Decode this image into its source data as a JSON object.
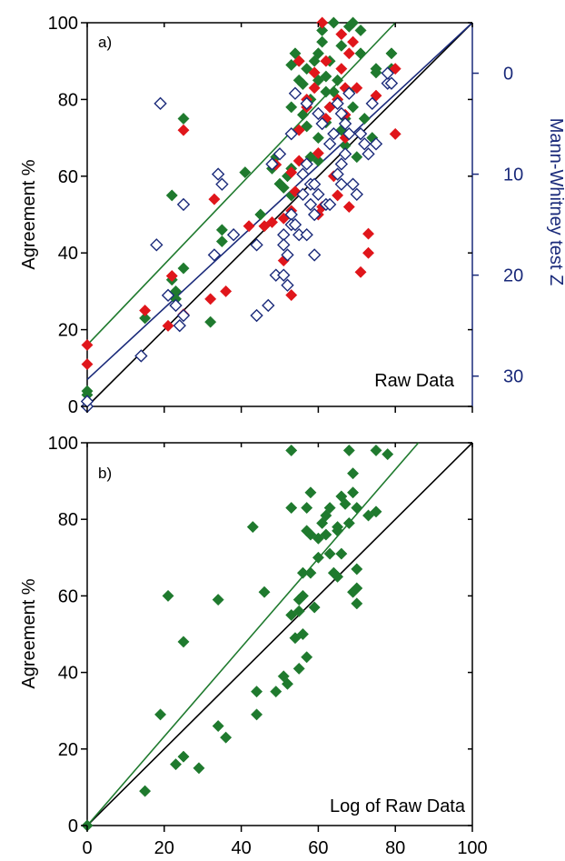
{
  "colors": {
    "black": "#000000",
    "green": "#1f7a2e",
    "red": "#e0161b",
    "navy": "#1a2a7a"
  },
  "chart_data": [
    {
      "type": "scatter",
      "panel_label": "a)",
      "annotation": "Raw Data",
      "ylabel": "Agreement %",
      "y2label": "Mann-Whitney test Z",
      "xlim": [
        0,
        100
      ],
      "ylim": [
        0,
        100
      ],
      "y2lim": [
        -5,
        33
      ],
      "y2_inverted": true,
      "xticks": [
        "0",
        "20",
        "40",
        "60",
        "80",
        "100"
      ],
      "xtick_labels_shown": false,
      "yticks": [
        {
          "value": 0,
          "label": "0"
        },
        {
          "value": 20,
          "label": "20"
        },
        {
          "value": 40,
          "label": "40"
        },
        {
          "value": 60,
          "label": "60"
        },
        {
          "value": 80,
          "label": "80"
        },
        {
          "value": 100,
          "label": "100"
        }
      ],
      "y2ticks": [
        {
          "value": 0,
          "label": "0"
        },
        {
          "value": 10,
          "label": "10"
        },
        {
          "value": 20,
          "label": "20"
        },
        {
          "value": 30,
          "label": "30"
        }
      ],
      "lines": [
        {
          "color": "black",
          "points": [
            [
              0,
              0
            ],
            [
              100,
              100
            ]
          ]
        },
        {
          "color": "green",
          "points": [
            [
              0,
              16
            ],
            [
              80,
              100
            ]
          ]
        },
        {
          "color": "navy",
          "points": [
            [
              0,
              7
            ],
            [
              100,
              100
            ]
          ]
        }
      ],
      "series": [
        {
          "color": "green",
          "marker": "diamond-filled",
          "points": [
            [
              0,
              3
            ],
            [
              0,
              4
            ],
            [
              15,
              23
            ],
            [
              22,
              55
            ],
            [
              22,
              33
            ],
            [
              23,
              30
            ],
            [
              23,
              28
            ],
            [
              25,
              75
            ],
            [
              25,
              36
            ],
            [
              32,
              22
            ],
            [
              35,
              43
            ],
            [
              35,
              46
            ],
            [
              41,
              61
            ],
            [
              45,
              50
            ],
            [
              46,
              47
            ],
            [
              48,
              62
            ],
            [
              49,
              65
            ],
            [
              50,
              58
            ],
            [
              51,
              57
            ],
            [
              52,
              60
            ],
            [
              53,
              55
            ],
            [
              53,
              62
            ],
            [
              53,
              78
            ],
            [
              53,
              89
            ],
            [
              54,
              92
            ],
            [
              55,
              85
            ],
            [
              55,
              90
            ],
            [
              56,
              84
            ],
            [
              56,
              76
            ],
            [
              57,
              73
            ],
            [
              57,
              88
            ],
            [
              58,
              65
            ],
            [
              58,
              80
            ],
            [
              59,
              90
            ],
            [
              60,
              92
            ],
            [
              60,
              85
            ],
            [
              60,
              70
            ],
            [
              60,
              64
            ],
            [
              61,
              98
            ],
            [
              61,
              95
            ],
            [
              62,
              86
            ],
            [
              62,
              82
            ],
            [
              62,
              74
            ],
            [
              63,
              90
            ],
            [
              63,
              78
            ],
            [
              64,
              100
            ],
            [
              64,
              82
            ],
            [
              65,
              85
            ],
            [
              65,
              80
            ],
            [
              66,
              94
            ],
            [
              66,
              72
            ],
            [
              67,
              75
            ],
            [
              67,
              68
            ],
            [
              68,
              99
            ],
            [
              68,
              82
            ],
            [
              69,
              100
            ],
            [
              69,
              78
            ],
            [
              70,
              65
            ],
            [
              71,
              98
            ],
            [
              71,
              92
            ],
            [
              72,
              75
            ],
            [
              74,
              70
            ],
            [
              75,
              88
            ],
            [
              75,
              87
            ],
            [
              79,
              92
            ],
            [
              79,
              88
            ]
          ]
        },
        {
          "color": "red",
          "marker": "diamond-filled",
          "points": [
            [
              0,
              16
            ],
            [
              0,
              11
            ],
            [
              15,
              25
            ],
            [
              21,
              21
            ],
            [
              22,
              34
            ],
            [
              25,
              72
            ],
            [
              25,
              24
            ],
            [
              32,
              28
            ],
            [
              33,
              54
            ],
            [
              36,
              30
            ],
            [
              42,
              47
            ],
            [
              46,
              47
            ],
            [
              48,
              48
            ],
            [
              49,
              63
            ],
            [
              51,
              49
            ],
            [
              51,
              38
            ],
            [
              53,
              51
            ],
            [
              53,
              29
            ],
            [
              53,
              61
            ],
            [
              54,
              56
            ],
            [
              55,
              72
            ],
            [
              55,
              90
            ],
            [
              55,
              64
            ],
            [
              57,
              80
            ],
            [
              57,
              78
            ],
            [
              59,
              83
            ],
            [
              59,
              87
            ],
            [
              60,
              66
            ],
            [
              60,
              50
            ],
            [
              61,
              100
            ],
            [
              61,
              52
            ],
            [
              62,
              90
            ],
            [
              62,
              75
            ],
            [
              63,
              78
            ],
            [
              64,
              60
            ],
            [
              65,
              80
            ],
            [
              65,
              55
            ],
            [
              66,
              97
            ],
            [
              66,
              88
            ],
            [
              67,
              83
            ],
            [
              67,
              76
            ],
            [
              67,
              70
            ],
            [
              68,
              92
            ],
            [
              68,
              52
            ],
            [
              69,
              95
            ],
            [
              70,
              83
            ],
            [
              71,
              35
            ],
            [
              73,
              45
            ],
            [
              73,
              40
            ],
            [
              75,
              81
            ],
            [
              80,
              71
            ],
            [
              80,
              88
            ]
          ]
        },
        {
          "color": "navy",
          "marker": "diamond-open",
          "y_axis": "right",
          "points": [
            [
              0,
              33
            ],
            [
              0,
              32.5
            ],
            [
              14,
              28
            ],
            [
              18,
              17
            ],
            [
              19,
              3
            ],
            [
              21,
              22
            ],
            [
              23,
              23
            ],
            [
              24,
              25
            ],
            [
              25,
              13
            ],
            [
              25,
              24
            ],
            [
              33,
              18
            ],
            [
              34,
              10
            ],
            [
              35,
              11
            ],
            [
              38,
              16
            ],
            [
              44,
              24
            ],
            [
              44,
              17
            ],
            [
              47,
              23
            ],
            [
              48,
              9
            ],
            [
              49,
              20
            ],
            [
              50,
              8
            ],
            [
              51,
              16
            ],
            [
              51,
              20
            ],
            [
              51,
              17
            ],
            [
              52,
              18
            ],
            [
              52,
              21
            ],
            [
              53,
              6
            ],
            [
              53,
              14
            ],
            [
              53,
              15
            ],
            [
              54,
              2
            ],
            [
              54,
              15
            ],
            [
              55,
              16
            ],
            [
              56,
              12
            ],
            [
              56,
              10
            ],
            [
              57,
              16
            ],
            [
              57,
              9
            ],
            [
              57,
              3
            ],
            [
              58,
              13
            ],
            [
              58,
              11
            ],
            [
              59,
              14
            ],
            [
              59,
              11
            ],
            [
              59,
              18
            ],
            [
              60,
              12
            ],
            [
              60,
              4
            ],
            [
              61,
              5
            ],
            [
              62,
              13
            ],
            [
              63,
              13
            ],
            [
              63,
              7
            ],
            [
              64,
              6
            ],
            [
              65,
              3
            ],
            [
              65,
              10
            ],
            [
              66,
              4
            ],
            [
              66,
              9
            ],
            [
              66,
              11
            ],
            [
              67,
              8
            ],
            [
              67,
              5
            ],
            [
              68,
              6
            ],
            [
              68,
              2
            ],
            [
              69,
              11
            ],
            [
              70,
              12
            ],
            [
              71,
              6
            ],
            [
              72,
              7
            ],
            [
              73,
              8
            ],
            [
              74,
              3
            ],
            [
              75,
              7
            ],
            [
              78,
              1
            ],
            [
              78,
              0
            ],
            [
              79,
              1
            ]
          ]
        }
      ]
    },
    {
      "type": "scatter",
      "panel_label": "b)",
      "annotation": "Log of Raw Data",
      "xlabel": "",
      "ylabel": "Agreement %",
      "xlim": [
        0,
        100
      ],
      "ylim": [
        0,
        100
      ],
      "xticks": [
        {
          "value": 0,
          "label": "0"
        },
        {
          "value": 20,
          "label": "20"
        },
        {
          "value": 40,
          "label": "40"
        },
        {
          "value": 60,
          "label": "60"
        },
        {
          "value": 80,
          "label": "80"
        },
        {
          "value": 100,
          "label": "100"
        }
      ],
      "yticks": [
        {
          "value": 0,
          "label": "0"
        },
        {
          "value": 20,
          "label": "20"
        },
        {
          "value": 40,
          "label": "40"
        },
        {
          "value": 60,
          "label": "60"
        },
        {
          "value": 80,
          "label": "80"
        },
        {
          "value": 100,
          "label": "100"
        }
      ],
      "lines": [
        {
          "color": "black",
          "points": [
            [
              0,
              0
            ],
            [
              100,
              100
            ]
          ]
        },
        {
          "color": "green",
          "points": [
            [
              0,
              0
            ],
            [
              86,
              100
            ]
          ]
        }
      ],
      "series": [
        {
          "color": "green",
          "marker": "diamond-filled",
          "points": [
            [
              0,
              0
            ],
            [
              15,
              9
            ],
            [
              19,
              29
            ],
            [
              21,
              60
            ],
            [
              23,
              16
            ],
            [
              25,
              48
            ],
            [
              25,
              18
            ],
            [
              29,
              15
            ],
            [
              34,
              59
            ],
            [
              34,
              26
            ],
            [
              36,
              23
            ],
            [
              43,
              78
            ],
            [
              44,
              29
            ],
            [
              44,
              35
            ],
            [
              46,
              61
            ],
            [
              49,
              35
            ],
            [
              51,
              39
            ],
            [
              52,
              37
            ],
            [
              53,
              98
            ],
            [
              53,
              83
            ],
            [
              53,
              55
            ],
            [
              54,
              49
            ],
            [
              55,
              56
            ],
            [
              55,
              59
            ],
            [
              55,
              41
            ],
            [
              56,
              66
            ],
            [
              56,
              60
            ],
            [
              56,
              50
            ],
            [
              57,
              83
            ],
            [
              57,
              77
            ],
            [
              57,
              44
            ],
            [
              58,
              76
            ],
            [
              58,
              66
            ],
            [
              58,
              87
            ],
            [
              59,
              57
            ],
            [
              60,
              75
            ],
            [
              60,
              70
            ],
            [
              61,
              79
            ],
            [
              62,
              81
            ],
            [
              62,
              76
            ],
            [
              63,
              71
            ],
            [
              63,
              83
            ],
            [
              64,
              66
            ],
            [
              65,
              78
            ],
            [
              65,
              65
            ],
            [
              65,
              77
            ],
            [
              66,
              86
            ],
            [
              66,
              71
            ],
            [
              67,
              84
            ],
            [
              68,
              98
            ],
            [
              68,
              79
            ],
            [
              69,
              92
            ],
            [
              69,
              87
            ],
            [
              69,
              61
            ],
            [
              70,
              67
            ],
            [
              70,
              62
            ],
            [
              70,
              58
            ],
            [
              70,
              83
            ],
            [
              73,
              81
            ],
            [
              75,
              98
            ],
            [
              75,
              82
            ],
            [
              78,
              97
            ]
          ]
        }
      ]
    }
  ]
}
